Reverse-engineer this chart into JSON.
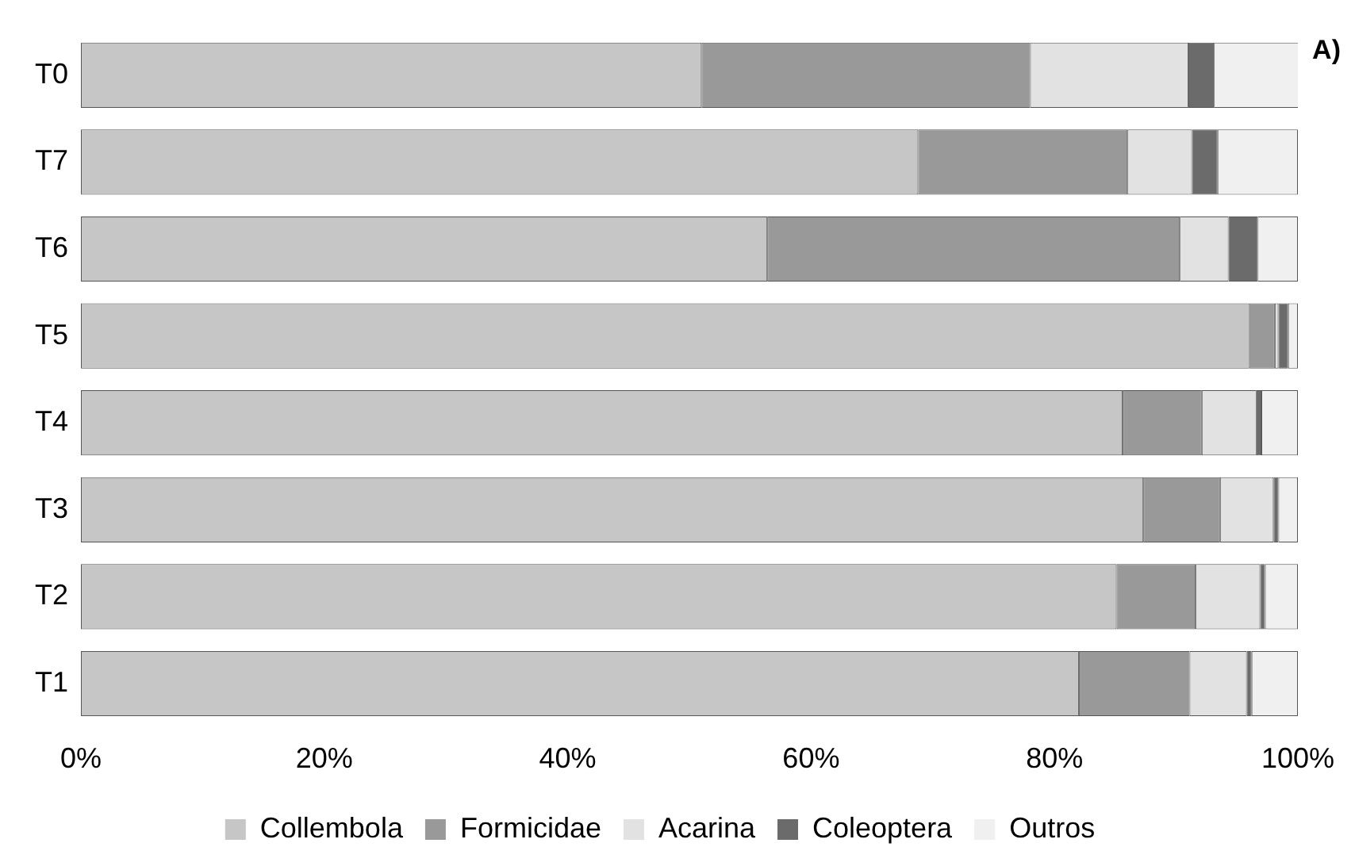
{
  "chart_data": {
    "type": "bar",
    "orientation": "horizontal",
    "stacked": true,
    "categories": [
      "T0",
      "T7",
      "T6",
      "T5",
      "T4",
      "T3",
      "T2",
      "T1"
    ],
    "series": [
      {
        "name": "Collembola",
        "color": "#c6c6c6",
        "values": [
          51,
          68.8,
          56.4,
          96.0,
          85.6,
          87.3,
          85.1,
          82.0
        ]
      },
      {
        "name": "Formicidae",
        "color": "#999999",
        "values": [
          27,
          17.2,
          33.9,
          2.1,
          6.5,
          6.3,
          6.5,
          9.1
        ]
      },
      {
        "name": "Acarina",
        "color": "#e2e2e2",
        "values": [
          13,
          5.3,
          4.0,
          0.3,
          4.5,
          4.4,
          5.3,
          4.7
        ]
      },
      {
        "name": "Coleoptera",
        "color": "#6b6b6b",
        "values": [
          2.1,
          2.1,
          2.4,
          0.8,
          0.4,
          0.4,
          0.4,
          0.4
        ]
      },
      {
        "name": "Outros",
        "color": "#f0f0f0",
        "values": [
          7.2,
          6.6,
          3.3,
          0.8,
          3.0,
          1.6,
          2.7,
          3.8
        ]
      }
    ],
    "xlim": [
      0,
      100
    ],
    "xticks": [
      {
        "value": 0,
        "label": "0%"
      },
      {
        "value": 20,
        "label": "20%"
      },
      {
        "value": 40,
        "label": "40%"
      },
      {
        "value": 60,
        "label": "60%"
      },
      {
        "value": 80,
        "label": "80%"
      },
      {
        "value": 100,
        "label": "100%"
      }
    ],
    "grid": false,
    "legend": "bottom",
    "annotations": [
      "A)"
    ]
  }
}
